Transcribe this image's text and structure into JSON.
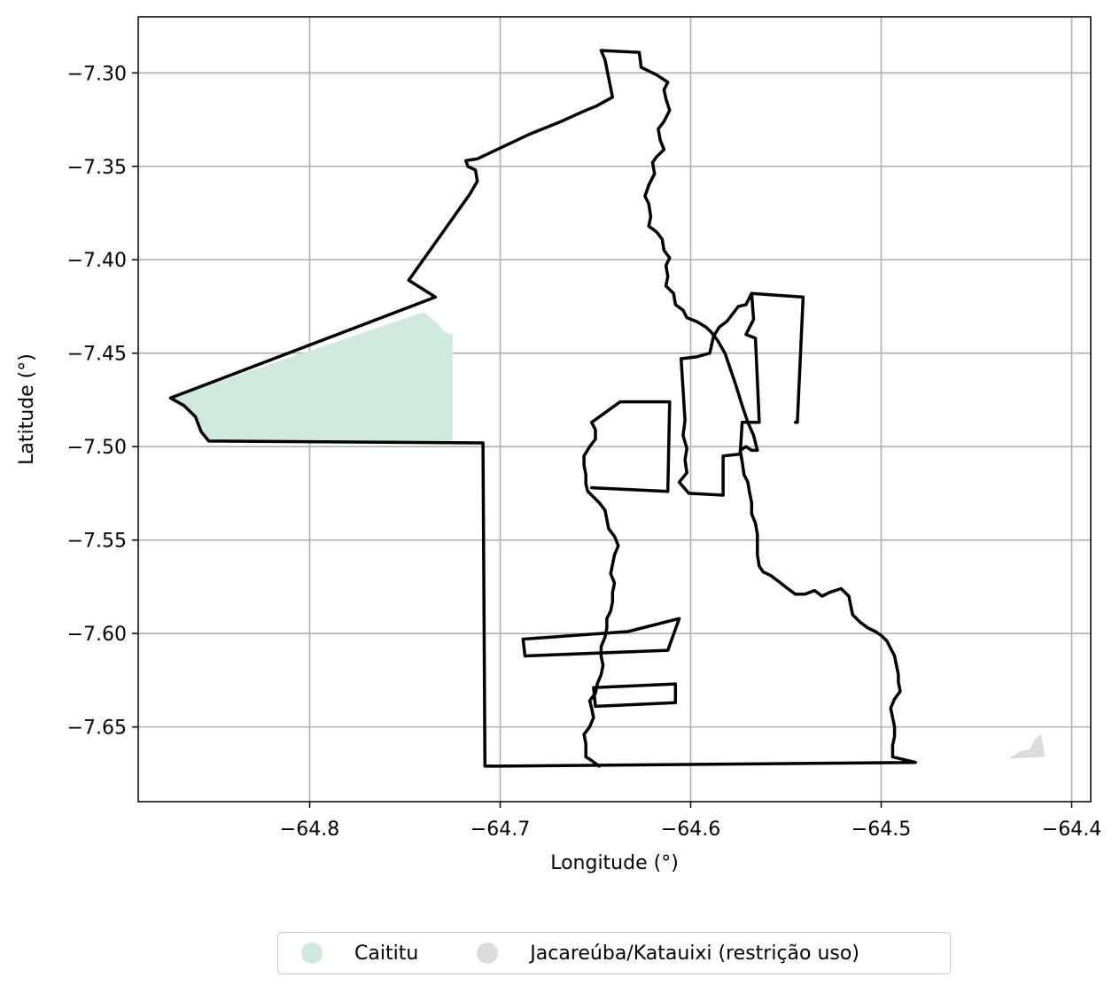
{
  "map": {
    "xlabel": "Longitude (°)",
    "ylabel": "Latitude (°)",
    "xlim": [
      -64.89,
      -64.39
    ],
    "ylim": [
      -7.69,
      -7.27
    ],
    "x_ticks": [
      -64.8,
      -64.7,
      -64.6,
      -64.5,
      -64.4
    ],
    "x_tick_labels": [
      "−64.8",
      "−64.7",
      "−64.6",
      "−64.5",
      "−64.4"
    ],
    "y_ticks": [
      -7.3,
      -7.35,
      -7.4,
      -7.45,
      -7.5,
      -7.55,
      -7.6,
      -7.65
    ],
    "y_tick_labels": [
      "−7.30",
      "−7.35",
      "−7.40",
      "−7.45",
      "−7.50",
      "−7.55",
      "−7.60",
      "−7.65"
    ],
    "grid": true,
    "boundary_color": "#000000"
  },
  "legend": {
    "placement": "bottom-center",
    "items": [
      {
        "label": "Caititu",
        "color": "#cfeadd"
      },
      {
        "label": "Jacareúba/Katauixi (restrição uso)",
        "color": "#dcdcdc"
      }
    ]
  },
  "chart_data": {
    "type": "map",
    "xlabel": "Longitude (°)",
    "ylabel": "Latitude (°)",
    "xlim": [
      -64.89,
      -64.39
    ],
    "ylim": [
      -7.69,
      -7.27
    ],
    "regions": [
      {
        "name": "Caititu",
        "color": "#cfeadd",
        "coords": [
          [
            -64.873,
            -7.474
          ],
          [
            -64.74,
            -7.428
          ],
          [
            -64.733,
            -7.434
          ],
          [
            -64.729,
            -7.439
          ],
          [
            -64.725,
            -7.44
          ],
          [
            -64.725,
            -7.497
          ],
          [
            -64.853,
            -7.497
          ],
          [
            -64.857,
            -7.492
          ],
          [
            -64.86,
            -7.484
          ],
          [
            -64.866,
            -7.478
          ]
        ]
      },
      {
        "name": "Jacareúba/Katauixi (restrição uso)",
        "color": "#dcdcdc",
        "coords": [
          [
            -64.433,
            -7.667
          ],
          [
            -64.427,
            -7.663
          ],
          [
            -64.422,
            -7.662
          ],
          [
            -64.419,
            -7.656
          ],
          [
            -64.416,
            -7.654
          ],
          [
            -64.414,
            -7.666
          ]
        ]
      }
    ],
    "boundaries": [
      [
        [
          -64.873,
          -7.474
        ],
        [
          -64.734,
          -7.42
        ],
        [
          -64.748,
          -7.411
        ],
        [
          -64.716,
          -7.365
        ],
        [
          -64.712,
          -7.358
        ],
        [
          -64.713,
          -7.352
        ],
        [
          -64.717,
          -7.35
        ],
        [
          -64.718,
          -7.347
        ],
        [
          -64.712,
          -7.346
        ],
        [
          -64.685,
          -7.333
        ],
        [
          -64.668,
          -7.326
        ],
        [
          -64.655,
          -7.32
        ],
        [
          -64.65,
          -7.318
        ],
        [
          -64.641,
          -7.313
        ],
        [
          -64.645,
          -7.293
        ],
        [
          -64.647,
          -7.288
        ],
        [
          -64.627,
          -7.289
        ],
        [
          -64.626,
          -7.297
        ],
        [
          -64.622,
          -7.299
        ],
        [
          -64.618,
          -7.301
        ],
        [
          -64.612,
          -7.305
        ],
        [
          -64.614,
          -7.309
        ],
        [
          -64.613,
          -7.314
        ],
        [
          -64.611,
          -7.32
        ],
        [
          -64.614,
          -7.326
        ],
        [
          -64.617,
          -7.33
        ],
        [
          -64.616,
          -7.336
        ],
        [
          -64.614,
          -7.341
        ],
        [
          -64.618,
          -7.345
        ],
        [
          -64.62,
          -7.348
        ],
        [
          -64.619,
          -7.354
        ],
        [
          -64.622,
          -7.36
        ],
        [
          -64.624,
          -7.366
        ],
        [
          -64.622,
          -7.37
        ],
        [
          -64.621,
          -7.377
        ],
        [
          -64.622,
          -7.382
        ],
        [
          -64.618,
          -7.385
        ],
        [
          -64.615,
          -7.389
        ],
        [
          -64.614,
          -7.395
        ],
        [
          -64.611,
          -7.399
        ],
        [
          -64.613,
          -7.403
        ],
        [
          -64.612,
          -7.409
        ],
        [
          -64.613,
          -7.414
        ],
        [
          -64.609,
          -7.418
        ],
        [
          -64.608,
          -7.424
        ],
        [
          -64.604,
          -7.427
        ],
        [
          -64.602,
          -7.431
        ],
        [
          -64.597,
          -7.433
        ],
        [
          -64.592,
          -7.436
        ],
        [
          -64.589,
          -7.439
        ],
        [
          -64.586,
          -7.443
        ],
        [
          -64.582,
          -7.45
        ],
        [
          -64.579,
          -7.459
        ],
        [
          -64.576,
          -7.468
        ],
        [
          -64.573,
          -7.478
        ],
        [
          -64.57,
          -7.487
        ],
        [
          -64.567,
          -7.494
        ],
        [
          -64.565,
          -7.502
        ],
        [
          -64.568,
          -7.502
        ],
        [
          -64.571,
          -7.5
        ],
        [
          -64.574,
          -7.502
        ],
        [
          -64.573,
          -7.508
        ],
        [
          -64.572,
          -7.515
        ],
        [
          -64.57,
          -7.519
        ],
        [
          -64.569,
          -7.525
        ],
        [
          -64.568,
          -7.53
        ],
        [
          -64.568,
          -7.536
        ],
        [
          -64.566,
          -7.541
        ],
        [
          -64.565,
          -7.547
        ],
        [
          -64.565,
          -7.552
        ],
        [
          -64.565,
          -7.558
        ],
        [
          -64.564,
          -7.564
        ],
        [
          -64.562,
          -7.567
        ],
        [
          -64.558,
          -7.569
        ],
        [
          -64.554,
          -7.572
        ],
        [
          -64.549,
          -7.576
        ],
        [
          -64.545,
          -7.579
        ],
        [
          -64.54,
          -7.579
        ],
        [
          -64.535,
          -7.577
        ],
        [
          -64.531,
          -7.58
        ],
        [
          -64.527,
          -7.578
        ],
        [
          -64.521,
          -7.576
        ],
        [
          -64.517,
          -7.58
        ],
        [
          -64.516,
          -7.585
        ],
        [
          -64.515,
          -7.59
        ],
        [
          -64.511,
          -7.594
        ],
        [
          -64.507,
          -7.597
        ],
        [
          -64.503,
          -7.599
        ],
        [
          -64.5,
          -7.601
        ],
        [
          -64.497,
          -7.604
        ],
        [
          -64.495,
          -7.608
        ],
        [
          -64.493,
          -7.612
        ],
        [
          -64.492,
          -7.617
        ],
        [
          -64.491,
          -7.622
        ],
        [
          -64.491,
          -7.626
        ],
        [
          -64.49,
          -7.631
        ],
        [
          -64.493,
          -7.635
        ],
        [
          -64.495,
          -7.64
        ],
        [
          -64.494,
          -7.645
        ],
        [
          -64.493,
          -7.65
        ],
        [
          -64.493,
          -7.655
        ],
        [
          -64.494,
          -7.66
        ],
        [
          -64.494,
          -7.666
        ],
        [
          -64.482,
          -7.669
        ],
        [
          -64.7,
          -7.671
        ],
        [
          -64.708,
          -7.671
        ],
        [
          -64.709,
          -7.498
        ],
        [
          -64.853,
          -7.497
        ],
        [
          -64.857,
          -7.492
        ],
        [
          -64.86,
          -7.484
        ],
        [
          -64.866,
          -7.478
        ],
        [
          -64.873,
          -7.474
        ]
      ],
      [
        [
          -64.648,
          -7.671
        ],
        [
          -64.652,
          -7.668
        ],
        [
          -64.655,
          -7.666
        ],
        [
          -64.655,
          -7.659
        ],
        [
          -64.656,
          -7.654
        ],
        [
          -64.653,
          -7.65
        ],
        [
          -64.651,
          -7.645
        ],
        [
          -64.652,
          -7.64
        ],
        [
          -64.653,
          -7.636
        ],
        [
          -64.65,
          -7.632
        ],
        [
          -64.649,
          -7.627
        ],
        [
          -64.647,
          -7.622
        ],
        [
          -64.646,
          -7.617
        ],
        [
          -64.647,
          -7.612
        ],
        [
          -64.647,
          -7.607
        ],
        [
          -64.645,
          -7.602
        ],
        [
          -64.644,
          -7.597
        ],
        [
          -64.644,
          -7.592
        ],
        [
          -64.642,
          -7.588
        ],
        [
          -64.641,
          -7.583
        ],
        [
          -64.641,
          -7.578
        ],
        [
          -64.64,
          -7.573
        ],
        [
          -64.642,
          -7.568
        ],
        [
          -64.641,
          -7.563
        ],
        [
          -64.64,
          -7.558
        ],
        [
          -64.638,
          -7.553
        ],
        [
          -64.64,
          -7.548
        ],
        [
          -64.643,
          -7.544
        ],
        [
          -64.644,
          -7.539
        ],
        [
          -64.645,
          -7.534
        ],
        [
          -64.648,
          -7.53
        ],
        [
          -64.651,
          -7.527
        ],
        [
          -64.654,
          -7.524
        ],
        [
          -64.655,
          -7.52
        ],
        [
          -64.655,
          -7.515
        ],
        [
          -64.656,
          -7.51
        ],
        [
          -64.656,
          -7.505
        ],
        [
          -64.653,
          -7.5
        ],
        [
          -64.65,
          -7.496
        ],
        [
          -64.65,
          -7.491
        ],
        [
          -64.652,
          -7.487
        ]
      ],
      [
        [
          -64.652,
          -7.487
        ],
        [
          -64.637,
          -7.476
        ],
        [
          -64.611,
          -7.476
        ],
        [
          -64.612,
          -7.524
        ],
        [
          -64.652,
          -7.522
        ]
      ],
      [
        [
          -64.605,
          -7.453
        ],
        [
          -64.603,
          -7.486
        ],
        [
          -64.604,
          -7.494
        ],
        [
          -64.602,
          -7.501
        ],
        [
          -64.603,
          -7.507
        ],
        [
          -64.602,
          -7.514
        ],
        [
          -64.606,
          -7.519
        ],
        [
          -64.601,
          -7.525
        ],
        [
          -64.583,
          -7.526
        ],
        [
          -64.583,
          -7.505
        ],
        [
          -64.574,
          -7.504
        ],
        [
          -64.573,
          -7.487
        ],
        [
          -64.564,
          -7.487
        ],
        [
          -64.566,
          -7.442
        ],
        [
          -64.571,
          -7.44
        ],
        [
          -64.567,
          -7.432
        ],
        [
          -64.568,
          -7.418
        ],
        [
          -64.541,
          -7.42
        ],
        [
          -64.544,
          -7.487
        ],
        [
          -64.545,
          -7.487
        ]
      ],
      [
        [
          -64.605,
          -7.453
        ],
        [
          -64.597,
          -7.452
        ],
        [
          -64.59,
          -7.45
        ],
        [
          -64.588,
          -7.441
        ],
        [
          -64.585,
          -7.436
        ],
        [
          -64.581,
          -7.433
        ],
        [
          -64.578,
          -7.429
        ],
        [
          -64.575,
          -7.425
        ],
        [
          -64.571,
          -7.424
        ],
        [
          -64.568,
          -7.418
        ]
      ],
      [
        [
          -64.606,
          -7.592
        ],
        [
          -64.612,
          -7.609
        ],
        [
          -64.687,
          -7.612
        ],
        [
          -64.688,
          -7.603
        ],
        [
          -64.633,
          -7.599
        ],
        [
          -64.606,
          -7.592
        ]
      ],
      [
        [
          -64.608,
          -7.627
        ],
        [
          -64.608,
          -7.637
        ],
        [
          -64.65,
          -7.639
        ],
        [
          -64.651,
          -7.629
        ],
        [
          -64.608,
          -7.627
        ]
      ]
    ]
  }
}
